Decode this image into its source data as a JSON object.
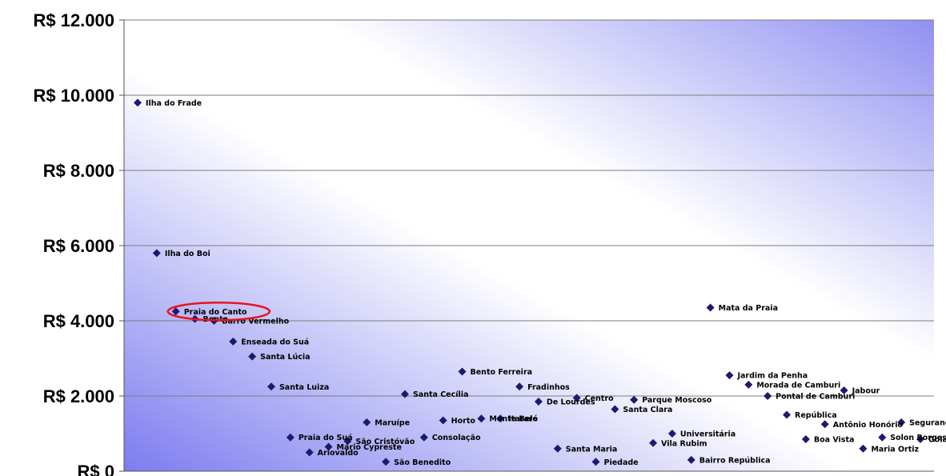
{
  "chart_data": {
    "type": "scatter",
    "title": "",
    "xlabel": "",
    "ylabel": "",
    "ylim": [
      0,
      12000
    ],
    "y_ticks": [
      {
        "value": 0,
        "label": "R$ 0"
      },
      {
        "value": 2000,
        "label": "R$ 2.000"
      },
      {
        "value": 4000,
        "label": "R$ 4.000"
      },
      {
        "value": 6000,
        "label": "R$ 6.000"
      },
      {
        "value": 8000,
        "label": "R$ 8.000"
      },
      {
        "value": 10000,
        "label": "R$ 10.000"
      },
      {
        "value": 12000,
        "label": "R$ 12.000"
      }
    ],
    "grid": true,
    "legend": "none",
    "marker_color": "#1a1a6e",
    "highlight_color": "#e8141c",
    "highlight": "Praia do Canto",
    "points": [
      {
        "x": 1,
        "y": 9800,
        "label": "Ilha do Frade"
      },
      {
        "x": 2,
        "y": 5800,
        "label": "Ilha do Boi"
      },
      {
        "x": 3,
        "y": 4250,
        "label": "Praia do Canto"
      },
      {
        "x": 4,
        "y": 4050,
        "label": "Bento"
      },
      {
        "x": 5,
        "y": 4000,
        "label": "Barro Vermelho"
      },
      {
        "x": 6,
        "y": 3450,
        "label": "Enseada do Suá"
      },
      {
        "x": 7,
        "y": 3050,
        "label": "Santa Lúcia"
      },
      {
        "x": 8,
        "y": 2250,
        "label": "Santa Luiza"
      },
      {
        "x": 9,
        "y": 900,
        "label": "Praia do Suá"
      },
      {
        "x": 10,
        "y": 500,
        "label": "Ariovaldo"
      },
      {
        "x": 11,
        "y": 650,
        "label": "Mário Cypreste"
      },
      {
        "x": 12,
        "y": 800,
        "label": "São Cristóvão"
      },
      {
        "x": 13,
        "y": 1300,
        "label": "Maruípe"
      },
      {
        "x": 14,
        "y": 250,
        "label": "São Benedito"
      },
      {
        "x": 15,
        "y": 2050,
        "label": "Santa Cecília"
      },
      {
        "x": 16,
        "y": 900,
        "label": "Consolação"
      },
      {
        "x": 17,
        "y": 1350,
        "label": "Horto"
      },
      {
        "x": 18,
        "y": 2650,
        "label": "Bento Ferreira"
      },
      {
        "x": 19,
        "y": 1400,
        "label": "Monte Belo"
      },
      {
        "x": 20,
        "y": 1400,
        "label": "Itararé"
      },
      {
        "x": 21,
        "y": 2250,
        "label": "Fradinhos"
      },
      {
        "x": 22,
        "y": 1850,
        "label": "De Lourdes"
      },
      {
        "x": 23,
        "y": 600,
        "label": "Santa Maria"
      },
      {
        "x": 24,
        "y": 1950,
        "label": "Centro"
      },
      {
        "x": 25,
        "y": 250,
        "label": "Piedade"
      },
      {
        "x": 26,
        "y": 1650,
        "label": "Santa Clara"
      },
      {
        "x": 27,
        "y": 1900,
        "label": "Parque Moscoso"
      },
      {
        "x": 28,
        "y": 750,
        "label": "Vila Rubim"
      },
      {
        "x": 29,
        "y": 1000,
        "label": "Universitária"
      },
      {
        "x": 30,
        "y": 300,
        "label": "Bairro República"
      },
      {
        "x": 31,
        "y": 4350,
        "label": "Mata da Praia"
      },
      {
        "x": 32,
        "y": 2550,
        "label": "Jardim da Penha"
      },
      {
        "x": 33,
        "y": 2300,
        "label": "Morada de Camburi"
      },
      {
        "x": 34,
        "y": 2000,
        "label": "Pontal de Camburi"
      },
      {
        "x": 35,
        "y": 1500,
        "label": "República"
      },
      {
        "x": 36,
        "y": 850,
        "label": "Boa Vista"
      },
      {
        "x": 37,
        "y": 1250,
        "label": "Antônio Honório"
      },
      {
        "x": 38,
        "y": 2150,
        "label": "Jabour"
      },
      {
        "x": 39,
        "y": 600,
        "label": "Maria Ortiz"
      },
      {
        "x": 40,
        "y": 900,
        "label": "Solon Borges"
      },
      {
        "x": 41,
        "y": 1300,
        "label": "Segurança"
      },
      {
        "x": 42,
        "y": 850,
        "label": "Goiabeiras"
      }
    ]
  }
}
